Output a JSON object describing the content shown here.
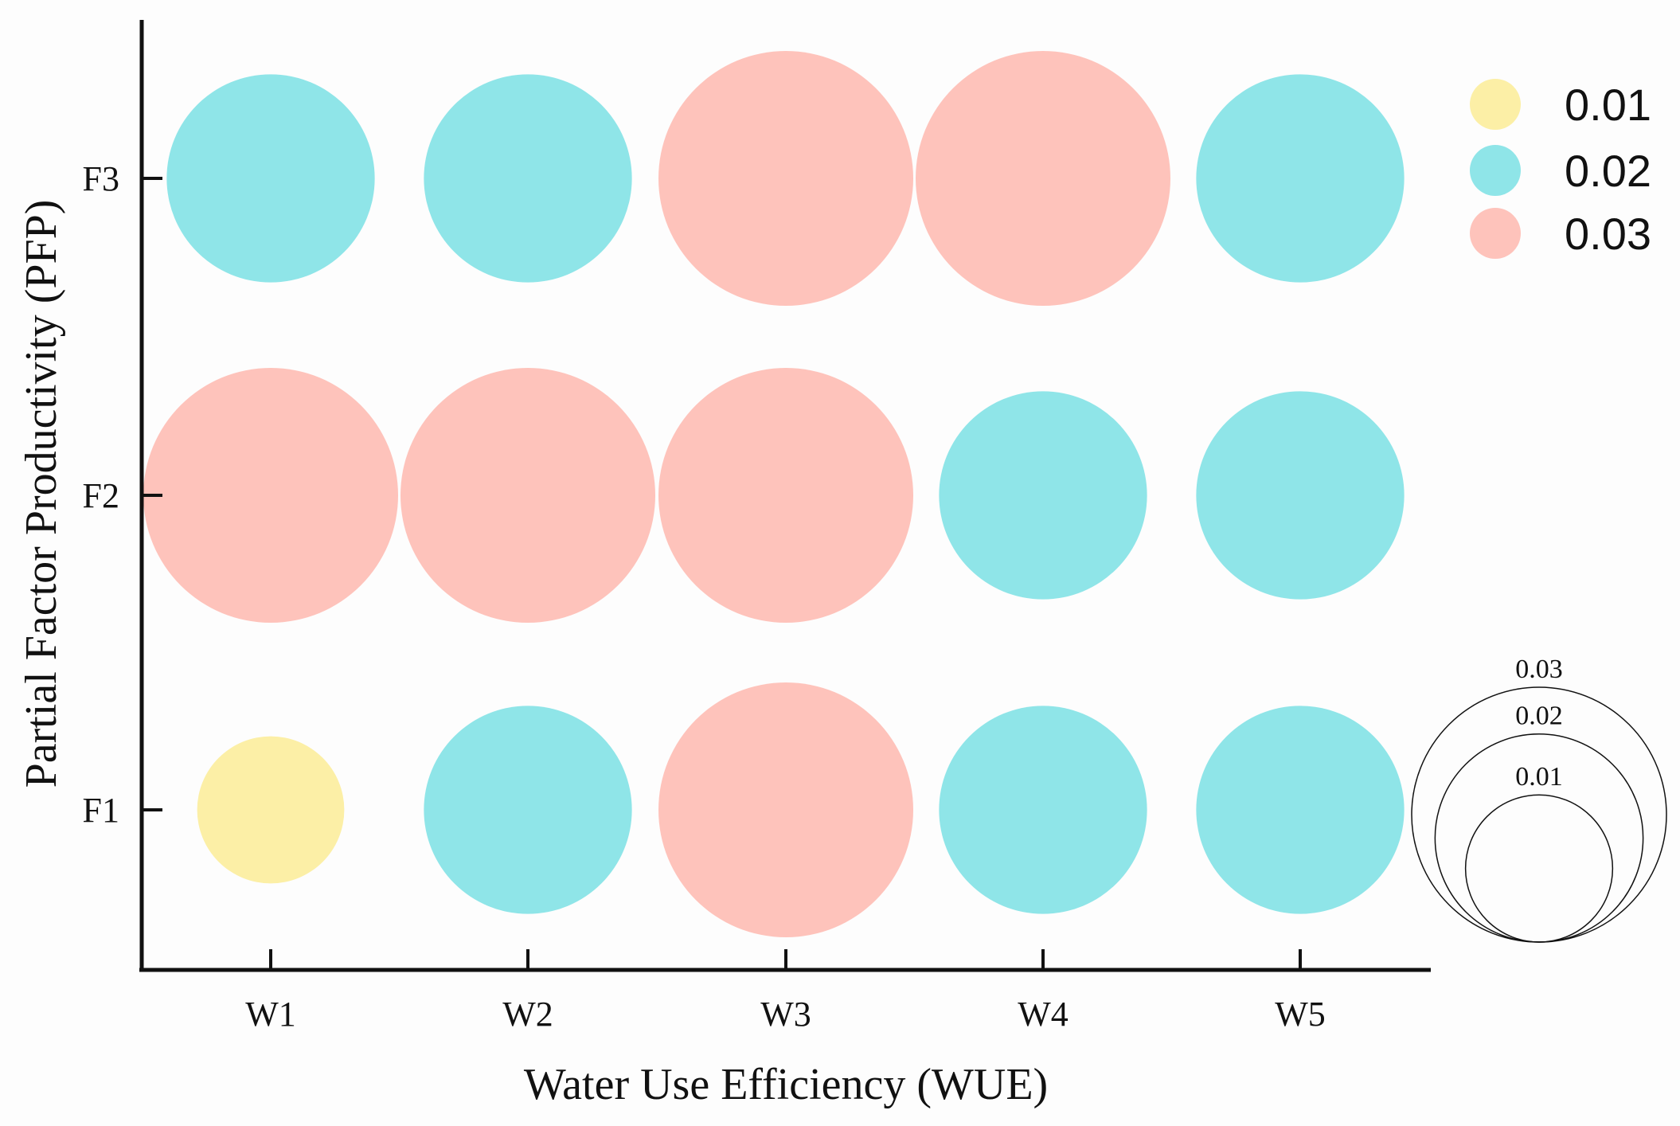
{
  "chart_data": {
    "type": "scatter",
    "subtype": "bubble",
    "title": "",
    "xlabel": "Water Use Efficiency (WUE)",
    "ylabel": "Partial Factor Productivity (PFP)",
    "x_categories": [
      "W1",
      "W2",
      "W3",
      "W4",
      "W5"
    ],
    "y_categories": [
      "F1",
      "F2",
      "F3"
    ],
    "points": [
      {
        "x": "W1",
        "y": "F3",
        "value": 0.02
      },
      {
        "x": "W2",
        "y": "F3",
        "value": 0.02
      },
      {
        "x": "W3",
        "y": "F3",
        "value": 0.03
      },
      {
        "x": "W4",
        "y": "F3",
        "value": 0.03
      },
      {
        "x": "W5",
        "y": "F3",
        "value": 0.02
      },
      {
        "x": "W1",
        "y": "F2",
        "value": 0.03
      },
      {
        "x": "W2",
        "y": "F2",
        "value": 0.03
      },
      {
        "x": "W3",
        "y": "F2",
        "value": 0.03
      },
      {
        "x": "W4",
        "y": "F2",
        "value": 0.02
      },
      {
        "x": "W5",
        "y": "F2",
        "value": 0.02
      },
      {
        "x": "W1",
        "y": "F1",
        "value": 0.01
      },
      {
        "x": "W2",
        "y": "F1",
        "value": 0.02
      },
      {
        "x": "W3",
        "y": "F1",
        "value": 0.03
      },
      {
        "x": "W4",
        "y": "F1",
        "value": 0.02
      },
      {
        "x": "W5",
        "y": "F1",
        "value": 0.02
      }
    ],
    "legend": {
      "placement": "top-right",
      "entries": [
        {
          "label": "0.01",
          "value": 0.01,
          "color": "#fcefa6"
        },
        {
          "label": "0.02",
          "value": 0.02,
          "color": "#8fe5e8"
        },
        {
          "label": "0.03",
          "value": 0.03,
          "color": "#fec3bb"
        }
      ]
    },
    "size_legend": {
      "placement": "bottom-right",
      "entries": [
        {
          "label": "0.03",
          "value": 0.03
        },
        {
          "label": "0.02",
          "value": 0.02
        },
        {
          "label": "0.01",
          "value": 0.01
        }
      ]
    },
    "grid": false
  }
}
